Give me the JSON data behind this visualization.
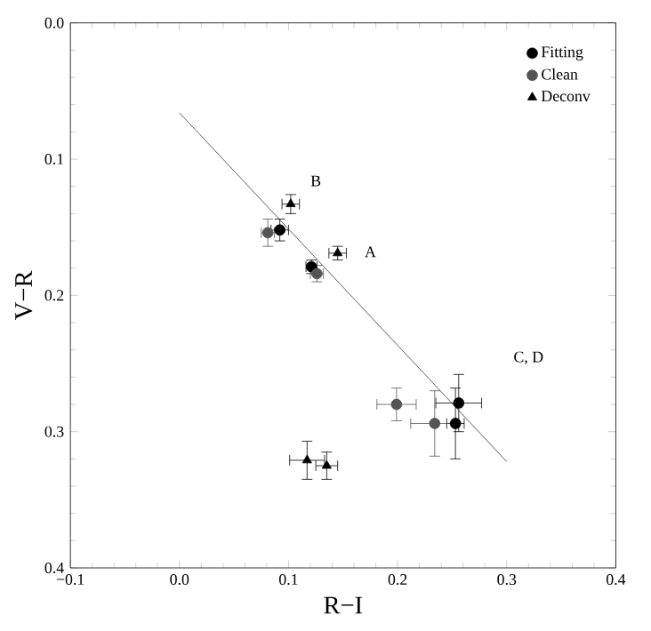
{
  "chart_data": {
    "type": "scatter",
    "xlabel": "R−I",
    "ylabel": "V−R",
    "xlim": [
      -0.1,
      0.4
    ],
    "ylim": [
      0.4,
      0.0
    ],
    "xticks": [
      {
        "value": -0.1,
        "label": "−0.1"
      },
      {
        "value": 0,
        "label": "0.0"
      },
      {
        "value": 0.1,
        "label": "0.1"
      },
      {
        "value": 0.2,
        "label": "0.2"
      },
      {
        "value": 0.3,
        "label": "0.3"
      },
      {
        "value": 0.4,
        "label": "0.4"
      }
    ],
    "yticks": [
      {
        "value": 0,
        "label": "0.0"
      },
      {
        "value": 0.1,
        "label": "0.1"
      },
      {
        "value": 0.2,
        "label": "0.2"
      },
      {
        "value": 0.3,
        "label": "0.3"
      },
      {
        "value": 0.4,
        "label": "0.4"
      }
    ],
    "legend": "top right",
    "grid": false,
    "series": [
      {
        "name": "Fitting",
        "color": "#000000",
        "marker": "circle",
        "x": [
          0.092,
          0.121,
          0.256,
          0.253
        ],
        "values": [
          0.152,
          0.179,
          0.279,
          0.294
        ],
        "xerrors": [
          0.008,
          0.005,
          0.021,
          0.008
        ],
        "errors": [
          0.008,
          0.005,
          0.021,
          0.026
        ]
      },
      {
        "name": "Clean",
        "color": "#555555",
        "marker": "circle",
        "x": [
          0.081,
          0.126,
          0.199,
          0.234
        ],
        "values": [
          0.154,
          0.184,
          0.28,
          0.294
        ],
        "xerrors": [
          0.006,
          0.006,
          0.018,
          0.022
        ],
        "errors": [
          0.01,
          0.006,
          0.012,
          0.024
        ]
      },
      {
        "name": "Deconv",
        "color": "#000000",
        "marker": "triangle",
        "x": [
          0.102,
          0.145,
          0.117,
          0.135
        ],
        "values": [
          0.133,
          0.169,
          0.321,
          0.325
        ],
        "xerrors": [
          0.008,
          0.008,
          0.016,
          0.01
        ],
        "errors": [
          0.007,
          0.005,
          0.014,
          0.01
        ]
      },
      {
        "type": "line",
        "color": "#333333",
        "marker": "none",
        "x": [
          0.0,
          0.3
        ],
        "values": [
          0.066,
          0.322
        ]
      }
    ],
    "annotations": [
      "B",
      "A",
      "C, D"
    ]
  }
}
